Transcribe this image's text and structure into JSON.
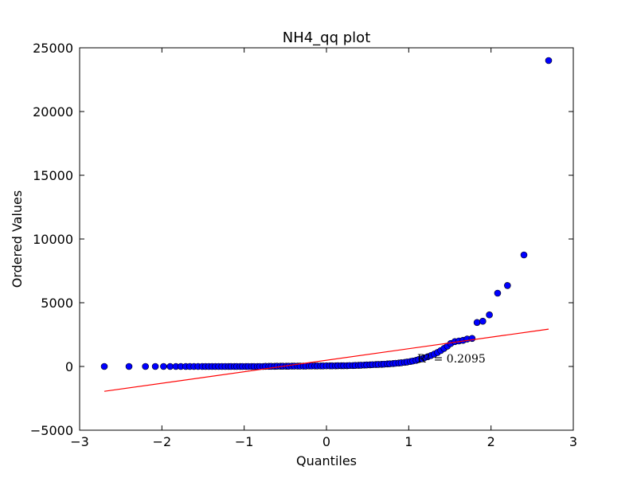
{
  "chart_data": {
    "type": "scatter",
    "title": "NH4_qq plot",
    "xlabel": "Quantiles",
    "ylabel": "Ordered Values",
    "xlim": [
      -3,
      3
    ],
    "ylim": [
      -5000,
      25000
    ],
    "x_ticks": [
      "−3",
      "−2",
      "−1",
      "0",
      "1",
      "2",
      "3"
    ],
    "y_ticks": [
      "−5000",
      "0",
      "5000",
      "10000",
      "15000",
      "20000",
      "25000"
    ],
    "grid": false,
    "legend": "none",
    "colors": {
      "points": "#0000ff",
      "point_edge": "#000000",
      "fit_line": "#ff0000",
      "frame": "#000000"
    },
    "annotation": "R² = 0.2095",
    "fit_line": {
      "x": [
        -2.7,
        2.7
      ],
      "y": [
        -1950,
        2930
      ]
    },
    "series": [
      {
        "x": [
          -2.7,
          -2.4,
          -2.2,
          -2.08,
          -1.98,
          -1.9,
          -1.83,
          -1.77,
          -1.71,
          -1.66,
          -1.61,
          -1.56,
          -1.51,
          -1.47,
          -1.43,
          -1.39,
          -1.35,
          -1.31,
          -1.27,
          -1.23,
          -1.19,
          -1.16,
          -1.12,
          -1.09,
          -1.05,
          -1.02,
          -0.98,
          -0.95,
          -0.91,
          -0.88,
          -0.84,
          -0.81,
          -0.77,
          -0.74,
          -0.7,
          -0.67,
          -0.63,
          -0.6,
          -0.56,
          -0.53,
          -0.49,
          -0.46,
          -0.42,
          -0.39,
          -0.35,
          -0.32,
          -0.28,
          -0.25,
          -0.21,
          -0.18,
          -0.14,
          -0.11,
          -0.07,
          -0.04,
          0.0,
          0.04,
          0.07,
          0.11,
          0.14,
          0.18,
          0.21,
          0.25,
          0.28,
          0.32,
          0.35,
          0.39,
          0.42,
          0.46,
          0.49,
          0.53,
          0.56,
          0.6,
          0.63,
          0.67,
          0.7,
          0.74,
          0.77,
          0.81,
          0.84,
          0.88,
          0.91,
          0.95,
          0.98,
          1.02,
          1.05,
          1.09,
          1.12,
          1.16,
          1.19,
          1.23,
          1.27,
          1.31,
          1.35,
          1.39,
          1.43,
          1.47,
          1.51,
          1.56,
          1.61,
          1.66,
          1.71,
          1.77,
          1.83,
          1.9,
          1.98,
          2.08,
          2.2,
          2.4,
          2.7
        ],
        "y": [
          0,
          0,
          0,
          0,
          0,
          0,
          0,
          0,
          0,
          0,
          0,
          0,
          0,
          0,
          0,
          0,
          0,
          0,
          0,
          0,
          0,
          0,
          0,
          0,
          0,
          0,
          0,
          0,
          0,
          0,
          0,
          0,
          0,
          10,
          10,
          10,
          10,
          20,
          20,
          20,
          20,
          20,
          30,
          30,
          30,
          30,
          30,
          30,
          40,
          40,
          40,
          40,
          40,
          40,
          50,
          50,
          50,
          50,
          60,
          60,
          60,
          60,
          70,
          70,
          80,
          90,
          100,
          110,
          120,
          130,
          140,
          150,
          160,
          170,
          180,
          200,
          210,
          230,
          250,
          270,
          290,
          320,
          350,
          390,
          430,
          480,
          540,
          600,
          680,
          760,
          860,
          970,
          1100,
          1250,
          1420,
          1600,
          1800,
          1950,
          2000,
          2050,
          2150,
          2200,
          3450,
          3550,
          4050,
          5750,
          6350,
          8750,
          24000
        ]
      }
    ]
  }
}
